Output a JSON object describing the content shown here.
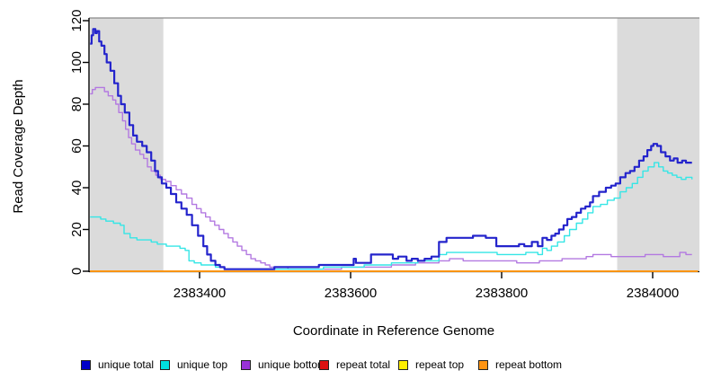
{
  "chart_data": {
    "type": "line",
    "title": "",
    "xlabel": "Coordinate in Reference Genome",
    "ylabel": "Read Coverage Depth",
    "xlim": [
      2383255,
      2384062
    ],
    "ylim": [
      0,
      120
    ],
    "xticks": [
      2383400,
      2383600,
      2383800,
      2384000
    ],
    "yticks": [
      0,
      20,
      40,
      60,
      80,
      100,
      120
    ],
    "grid": false,
    "legend_position": "bottom",
    "shaded_regions": [
      {
        "x0": 2383255,
        "x1": 2383352,
        "color": "#DBDBDB"
      },
      {
        "x0": 2383953,
        "x1": 2384062,
        "color": "#DBDBDB"
      }
    ],
    "shaded_top_value": 121.3,
    "shaded_border_color": "#8A8A8A",
    "legend": [
      {
        "label": "unique total",
        "color": "#0000C8"
      },
      {
        "label": "unique top",
        "color": "#00E0E0"
      },
      {
        "label": "unique bottom",
        "color": "#9932D8"
      },
      {
        "label": "repeat total",
        "color": "#DD1111"
      },
      {
        "label": "repeat top",
        "color": "#FFEE00"
      },
      {
        "label": "repeat bottom",
        "color": "#FF9412"
      }
    ],
    "series": [
      {
        "name": "unique total",
        "color": "#2424CC",
        "width": 2.2,
        "z": 6,
        "points": [
          [
            2383255,
            109
          ],
          [
            2383257,
            113
          ],
          [
            2383259,
            116
          ],
          [
            2383262,
            114
          ],
          [
            2383264,
            115
          ],
          [
            2383267,
            110
          ],
          [
            2383270,
            108
          ],
          [
            2383274,
            104
          ],
          [
            2383277,
            100
          ],
          [
            2383282,
            96
          ],
          [
            2383287,
            90
          ],
          [
            2383292,
            84
          ],
          [
            2383296,
            80
          ],
          [
            2383301,
            76
          ],
          [
            2383307,
            70
          ],
          [
            2383312,
            65
          ],
          [
            2383317,
            62
          ],
          [
            2383324,
            60
          ],
          [
            2383330,
            57
          ],
          [
            2383336,
            53
          ],
          [
            2383341,
            48
          ],
          [
            2383345,
            45
          ],
          [
            2383350,
            42
          ],
          [
            2383356,
            40
          ],
          [
            2383362,
            37
          ],
          [
            2383369,
            33
          ],
          [
            2383376,
            30
          ],
          [
            2383383,
            27
          ],
          [
            2383390,
            22
          ],
          [
            2383398,
            17
          ],
          [
            2383405,
            12
          ],
          [
            2383410,
            8
          ],
          [
            2383415,
            5
          ],
          [
            2383421,
            3
          ],
          [
            2383427,
            2
          ],
          [
            2383433,
            1
          ],
          [
            2383457,
            1
          ],
          [
            2383490,
            1
          ],
          [
            2383499,
            2
          ],
          [
            2383529,
            2
          ],
          [
            2383558,
            3
          ],
          [
            2383582,
            3
          ],
          [
            2383604,
            6
          ],
          [
            2383607,
            4
          ],
          [
            2383627,
            8
          ],
          [
            2383656,
            6
          ],
          [
            2383663,
            7
          ],
          [
            2383674,
            5
          ],
          [
            2383681,
            6
          ],
          [
            2383689,
            5
          ],
          [
            2383698,
            6
          ],
          [
            2383707,
            7
          ],
          [
            2383717,
            14
          ],
          [
            2383727,
            16
          ],
          [
            2383755,
            16
          ],
          [
            2383762,
            17
          ],
          [
            2383779,
            16
          ],
          [
            2383793,
            12
          ],
          [
            2383823,
            13
          ],
          [
            2383830,
            12
          ],
          [
            2383840,
            14
          ],
          [
            2383848,
            12
          ],
          [
            2383854,
            16
          ],
          [
            2383860,
            15
          ],
          [
            2383866,
            17
          ],
          [
            2383871,
            18
          ],
          [
            2383876,
            20
          ],
          [
            2383882,
            22
          ],
          [
            2383887,
            25
          ],
          [
            2383893,
            26
          ],
          [
            2383899,
            28
          ],
          [
            2383905,
            30
          ],
          [
            2383911,
            31
          ],
          [
            2383917,
            33
          ],
          [
            2383921,
            36
          ],
          [
            2383929,
            38
          ],
          [
            2383938,
            40
          ],
          [
            2383945,
            41
          ],
          [
            2383951,
            42
          ],
          [
            2383957,
            45
          ],
          [
            2383964,
            47
          ],
          [
            2383970,
            48
          ],
          [
            2383976,
            50
          ],
          [
            2383982,
            53
          ],
          [
            2383988,
            55
          ],
          [
            2383993,
            58
          ],
          [
            2383998,
            60
          ],
          [
            2384001,
            61
          ],
          [
            2384006,
            60
          ],
          [
            2384011,
            57
          ],
          [
            2384017,
            55
          ],
          [
            2384023,
            53
          ],
          [
            2384028,
            54
          ],
          [
            2384033,
            52
          ],
          [
            2384039,
            53
          ],
          [
            2384044,
            52
          ],
          [
            2384052,
            52
          ]
        ]
      },
      {
        "name": "unique top",
        "color": "#35E6E6",
        "width": 1.4,
        "z": 5,
        "points": [
          [
            2383255,
            26
          ],
          [
            2383269,
            25
          ],
          [
            2383276,
            24
          ],
          [
            2383286,
            23
          ],
          [
            2383295,
            22
          ],
          [
            2383300,
            18
          ],
          [
            2383308,
            16
          ],
          [
            2383317,
            15
          ],
          [
            2383336,
            14
          ],
          [
            2383344,
            13
          ],
          [
            2383356,
            12
          ],
          [
            2383374,
            11
          ],
          [
            2383381,
            10
          ],
          [
            2383386,
            5
          ],
          [
            2383393,
            4
          ],
          [
            2383402,
            3
          ],
          [
            2383421,
            2
          ],
          [
            2383433,
            1
          ],
          [
            2383460,
            1
          ],
          [
            2383529,
            1
          ],
          [
            2383564,
            2
          ],
          [
            2383600,
            2
          ],
          [
            2383618,
            3
          ],
          [
            2383636,
            3
          ],
          [
            2383654,
            4
          ],
          [
            2383674,
            4
          ],
          [
            2383689,
            5
          ],
          [
            2383705,
            5
          ],
          [
            2383717,
            8
          ],
          [
            2383727,
            9
          ],
          [
            2383779,
            9
          ],
          [
            2383794,
            8
          ],
          [
            2383814,
            8
          ],
          [
            2383832,
            9
          ],
          [
            2383848,
            8
          ],
          [
            2383854,
            11
          ],
          [
            2383860,
            10
          ],
          [
            2383866,
            12
          ],
          [
            2383874,
            14
          ],
          [
            2383883,
            17
          ],
          [
            2383890,
            20
          ],
          [
            2383899,
            23
          ],
          [
            2383907,
            25
          ],
          [
            2383914,
            28
          ],
          [
            2383921,
            31
          ],
          [
            2383931,
            32
          ],
          [
            2383940,
            34
          ],
          [
            2383949,
            35
          ],
          [
            2383957,
            38
          ],
          [
            2383965,
            40
          ],
          [
            2383973,
            42
          ],
          [
            2383980,
            45
          ],
          [
            2383987,
            48
          ],
          [
            2383994,
            50
          ],
          [
            2384002,
            52
          ],
          [
            2384008,
            50
          ],
          [
            2384014,
            48
          ],
          [
            2384020,
            47
          ],
          [
            2384026,
            46
          ],
          [
            2384032,
            45
          ],
          [
            2384038,
            44
          ],
          [
            2384044,
            45
          ],
          [
            2384052,
            44
          ]
        ]
      },
      {
        "name": "unique bottom",
        "color": "#B379E1",
        "width": 1.4,
        "z": 4,
        "points": [
          [
            2383255,
            85
          ],
          [
            2383258,
            87
          ],
          [
            2383262,
            88
          ],
          [
            2383270,
            88
          ],
          [
            2383274,
            86
          ],
          [
            2383279,
            84
          ],
          [
            2383285,
            82
          ],
          [
            2383289,
            80
          ],
          [
            2383293,
            76
          ],
          [
            2383298,
            72
          ],
          [
            2383302,
            68
          ],
          [
            2383306,
            64
          ],
          [
            2383310,
            61
          ],
          [
            2383315,
            58
          ],
          [
            2383321,
            56
          ],
          [
            2383326,
            54
          ],
          [
            2383331,
            50
          ],
          [
            2383336,
            48
          ],
          [
            2383342,
            46
          ],
          [
            2383348,
            44
          ],
          [
            2383355,
            43
          ],
          [
            2383362,
            41
          ],
          [
            2383369,
            39
          ],
          [
            2383376,
            37
          ],
          [
            2383383,
            35
          ],
          [
            2383390,
            32
          ],
          [
            2383396,
            30
          ],
          [
            2383402,
            28
          ],
          [
            2383408,
            26
          ],
          [
            2383414,
            24
          ],
          [
            2383420,
            22
          ],
          [
            2383426,
            20
          ],
          [
            2383432,
            18
          ],
          [
            2383438,
            16
          ],
          [
            2383444,
            14
          ],
          [
            2383450,
            12
          ],
          [
            2383456,
            10
          ],
          [
            2383462,
            8
          ],
          [
            2383468,
            6
          ],
          [
            2383474,
            5
          ],
          [
            2383481,
            4
          ],
          [
            2383487,
            3
          ],
          [
            2383493,
            2
          ],
          [
            2383517,
            1
          ],
          [
            2383552,
            1
          ],
          [
            2383588,
            2
          ],
          [
            2383636,
            2
          ],
          [
            2383654,
            3
          ],
          [
            2383674,
            3
          ],
          [
            2383686,
            4
          ],
          [
            2383705,
            4
          ],
          [
            2383717,
            5
          ],
          [
            2383731,
            6
          ],
          [
            2383749,
            5
          ],
          [
            2383785,
            5
          ],
          [
            2383820,
            4
          ],
          [
            2383838,
            4
          ],
          [
            2383850,
            5
          ],
          [
            2383864,
            5
          ],
          [
            2383880,
            6
          ],
          [
            2383898,
            6
          ],
          [
            2383912,
            7
          ],
          [
            2383921,
            8
          ],
          [
            2383933,
            8
          ],
          [
            2383945,
            7
          ],
          [
            2383975,
            7
          ],
          [
            2383990,
            8
          ],
          [
            2384005,
            8
          ],
          [
            2384014,
            7
          ],
          [
            2384031,
            7
          ],
          [
            2384036,
            9
          ],
          [
            2384044,
            8
          ],
          [
            2384052,
            8
          ]
        ]
      },
      {
        "name": "repeat total",
        "color": "#DD1111",
        "width": 1.4,
        "z": 1,
        "points": [
          [
            2383255,
            0
          ],
          [
            2384060,
            0
          ]
        ]
      },
      {
        "name": "repeat top",
        "color": "#FFEE00",
        "width": 1.4,
        "z": 2,
        "points": [
          [
            2383255,
            0
          ],
          [
            2384060,
            0
          ]
        ]
      },
      {
        "name": "repeat bottom",
        "color": "#FF9412",
        "width": 1.8,
        "z": 3,
        "points": [
          [
            2383255,
            0
          ],
          [
            2384060,
            0
          ]
        ]
      }
    ]
  }
}
